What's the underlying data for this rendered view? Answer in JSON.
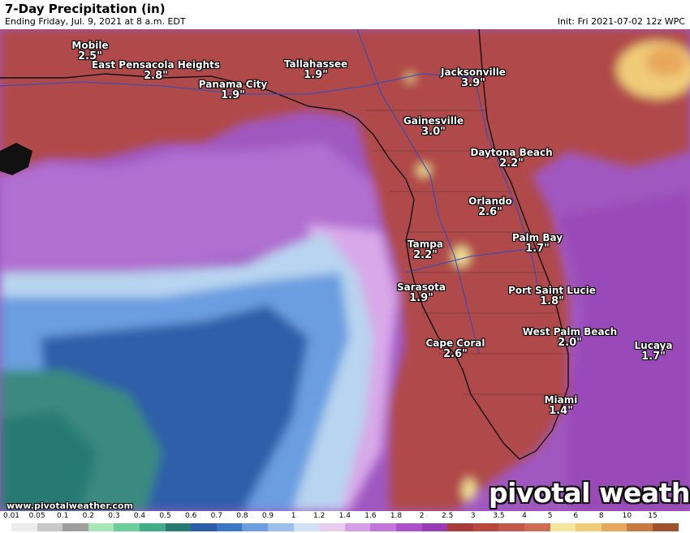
{
  "header": {
    "title": "7-Day Precipitation (in)",
    "subtitle": "Ending Friday, Jul. 9, 2021 at 8 a.m. EDT",
    "init": "Init: Fri 2021-07-02 12z WPC"
  },
  "cities": [
    {
      "name": "Mobile",
      "amount": "2.5\""
    },
    {
      "name": "East Pensacola Heights",
      "amount": "2.8\""
    },
    {
      "name": "Tallahassee",
      "amount": "1.9\""
    },
    {
      "name": "Panama City",
      "amount": "1.9\""
    },
    {
      "name": "Jacksonville",
      "amount": "3.9\""
    },
    {
      "name": "Gainesville",
      "amount": "3.0\""
    },
    {
      "name": "Daytona Beach",
      "amount": "2.2\""
    },
    {
      "name": "Orlando",
      "amount": "2.6\""
    },
    {
      "name": "Tampa",
      "amount": "2.2\""
    },
    {
      "name": "Palm Bay",
      "amount": "1.7\""
    },
    {
      "name": "Sarasota",
      "amount": "1.9\""
    },
    {
      "name": "Port Saint Lucie",
      "amount": "1.8\""
    },
    {
      "name": "West Palm Beach",
      "amount": "2.0\""
    },
    {
      "name": "Lucaya",
      "amount": "1.7\""
    },
    {
      "name": "Cape Coral",
      "amount": "2.6\""
    },
    {
      "name": "Miami",
      "amount": "1.4\""
    }
  ],
  "footer": {
    "url": "www.pivotalweather.com",
    "logo": "pivotal weather"
  },
  "legend": {
    "labels": [
      "0.01",
      "0.05",
      "0.1",
      "0.2",
      "0.3",
      "0.4",
      "0.5",
      "0.6",
      "0.7",
      "0.8",
      "0.9",
      "1",
      "1.2",
      "1.4",
      "1.6",
      "1.8",
      "2",
      "2.5",
      "3",
      "3.5",
      "4",
      "5",
      "6",
      "8",
      "10",
      "15"
    ],
    "colors": [
      "#ececec",
      "#c8c8c8",
      "#9e9e9e",
      "#a8e6b4",
      "#6ccf9a",
      "#3fae86",
      "#257a72",
      "#2d5ea8",
      "#3c78c8",
      "#6a9ee0",
      "#9cc0ec",
      "#cfe2f7",
      "#e8cdf0",
      "#d59ee6",
      "#c276dc",
      "#ad52cc",
      "#9a3ab4",
      "#a83a3a",
      "#b8483e",
      "#c4584a",
      "#d06c54",
      "#f4e79a",
      "#f0cc78",
      "#e8a85c",
      "#c87a40",
      "#a0522d"
    ]
  },
  "colors": {
    "ocean_purple": "#a058c0",
    "land_red": "#b04a48",
    "gulf_blue": "#3568b8",
    "teal": "#3a8a80"
  }
}
